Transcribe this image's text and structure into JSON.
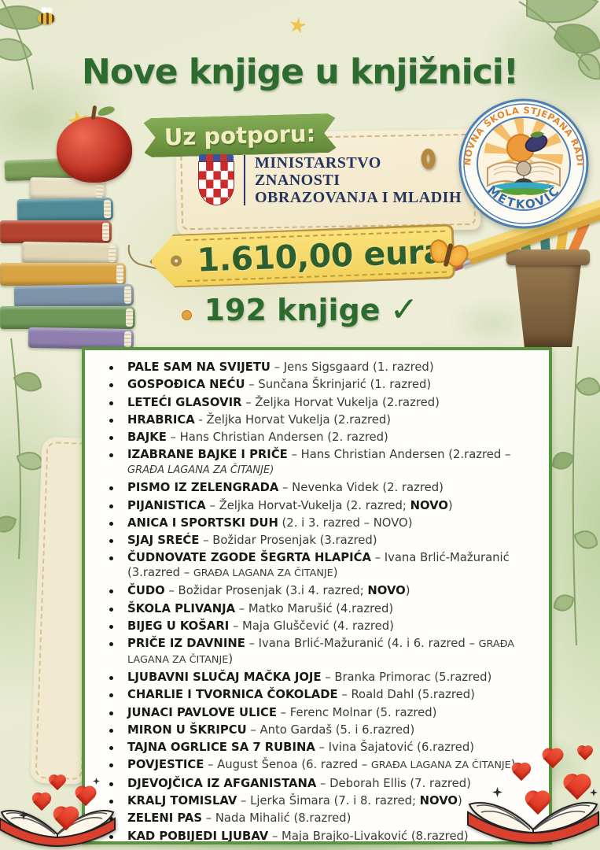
{
  "poster": {
    "title": "Nove knjige u knjižnici!"
  },
  "support": {
    "label": "Uz potporu:"
  },
  "ministry": {
    "line1": "MINISTARSTVO",
    "line2": "ZNANOSTI",
    "line3": "OBRAZOVANJA I MLADIH"
  },
  "funding": {
    "amount": "1.610,00 eura",
    "book_count": "192 knjige",
    "checkmark": "✓"
  },
  "school": {
    "arc_text": "OSNOVNA ŠKOLA STJEPANA RADIĆA",
    "city": "METKOVIĆ"
  },
  "colors": {
    "title_green": "#2d6b31",
    "ribbon_green": "#6c9440",
    "tag_yellow": "#f2d25c",
    "list_border_green": "#57953f",
    "ministry_navy": "#26355f",
    "heart_red": "#d92d1a",
    "logo_orange": "#e0862f",
    "logo_blue": "#2f6bad"
  },
  "books": [
    {
      "segments": [
        {
          "t": "PALE SAM NA SVIJETU",
          "s": "b"
        },
        {
          "t": " – Jens Sigsgaard (1. razred)",
          "s": "n"
        }
      ]
    },
    {
      "segments": [
        {
          "t": "GOSPOĐICA NEĆU",
          "s": "b"
        },
        {
          "t": " – Sunčana Škrinjarić (1. razred)",
          "s": "n"
        }
      ]
    },
    {
      "segments": [
        {
          "t": "LETEĆI GLASOVIR",
          "s": "b"
        },
        {
          "t": " – Željka Horvat Vukelja (2.razred)",
          "s": "n"
        }
      ]
    },
    {
      "segments": [
        {
          "t": "HRABRICA",
          "s": "b"
        },
        {
          "t": " - Željka Horvat Vukelja (2.razred)",
          "s": "n"
        }
      ]
    },
    {
      "segments": [
        {
          "t": "BAJKE",
          "s": "b"
        },
        {
          "t": " – Hans Christian Andersen (2. razred)",
          "s": "n"
        }
      ]
    },
    {
      "segments": [
        {
          "t": "IZABRANE BAJKE I PRIČE",
          "s": "b"
        },
        {
          "t": " – Hans Christian Andersen (2.razred – ",
          "s": "n"
        },
        {
          "t": "GRAĐA LAGANA ZA ČITANJE)",
          "s": "i"
        }
      ]
    },
    {
      "segments": [
        {
          "t": "PISMO IZ ZELENGRADA",
          "s": "b"
        },
        {
          "t": " – Nevenka Videk (2. razred)",
          "s": "n"
        }
      ]
    },
    {
      "segments": [
        {
          "t": "PIJANISTICA",
          "s": "b"
        },
        {
          "t": " – Željka Horvat-Vukelja (2. razred; ",
          "s": "n"
        },
        {
          "t": "NOVO",
          "s": "b"
        },
        {
          "t": ")",
          "s": "n"
        }
      ]
    },
    {
      "segments": [
        {
          "t": "ANICA I SPORTSKI DUH",
          "s": "b"
        },
        {
          "t": " (2. i 3. razred – NOVO)",
          "s": "n"
        }
      ]
    },
    {
      "segments": [
        {
          "t": "SJAJ SREĆE",
          "s": "b"
        },
        {
          "t": " – Božidar Prosenjak (3.razred)",
          "s": "n"
        }
      ]
    },
    {
      "segments": [
        {
          "t": "ČUDNOVATE ZGODE ŠEGRTA HLAPIĆA",
          "s": "b"
        },
        {
          "t": " – Ivana Brlić-Mažuranić (3.razred – ",
          "s": "n"
        },
        {
          "t": "GRAĐA LAGANA ZA ČITANJE",
          "s": "c"
        },
        {
          "t": ")",
          "s": "n"
        }
      ]
    },
    {
      "segments": [
        {
          "t": "ČUDO",
          "s": "b"
        },
        {
          "t": " – Božidar Prosenjak (3.i 4. razred; ",
          "s": "n"
        },
        {
          "t": "NOVO",
          "s": "b"
        },
        {
          "t": ")",
          "s": "n"
        }
      ]
    },
    {
      "segments": [
        {
          "t": "ŠKOLA PLIVANJA",
          "s": "b"
        },
        {
          "t": " – Matko Marušić (4.razred)",
          "s": "n"
        }
      ]
    },
    {
      "segments": [
        {
          "t": "BIJEG U KOŠARI",
          "s": "b"
        },
        {
          "t": " – Maja Gluščević (4. razred)",
          "s": "n"
        }
      ]
    },
    {
      "segments": [
        {
          "t": "PRIČE IZ DAVNINE",
          "s": "b"
        },
        {
          "t": " – Ivana Brlić-Mažuranić (4. i 6. razred – ",
          "s": "n"
        },
        {
          "t": "GRAĐA LAGANA ZA ČITANJE",
          "s": "c"
        },
        {
          "t": ")",
          "s": "n"
        }
      ]
    },
    {
      "segments": [
        {
          "t": "LJUBAVNI SLUČAJ MAČKA JOJE",
          "s": "b"
        },
        {
          "t": " – Branka Primorac (5.razred)",
          "s": "n"
        }
      ]
    },
    {
      "segments": [
        {
          "t": "CHARLIE I TVORNICA ČOKOLADE",
          "s": "b"
        },
        {
          "t": " – Roald Dahl (5.razred)",
          "s": "n"
        }
      ]
    },
    {
      "segments": [
        {
          "t": "JUNACI PAVLOVE ULICE",
          "s": "b"
        },
        {
          "t": " – Ferenc Molnar (5. razred)",
          "s": "n"
        }
      ]
    },
    {
      "segments": [
        {
          "t": "MIRON U ŠKRIPCU",
          "s": "b"
        },
        {
          "t": " – Anto Gardaš (5. i 6.razred)",
          "s": "n"
        }
      ]
    },
    {
      "segments": [
        {
          "t": "TAJNA OGRLICE SA 7 RUBINA",
          "s": "b"
        },
        {
          "t": " – Ivina Šajatović (6.razred)",
          "s": "n"
        }
      ]
    },
    {
      "segments": [
        {
          "t": "POVJESTICE",
          "s": "b"
        },
        {
          "t": " – August Šenoa (6. razred – ",
          "s": "n"
        },
        {
          "t": "GRAĐA LAGANA ZA ČITANJE",
          "s": "c"
        },
        {
          "t": ")",
          "s": "n"
        }
      ]
    },
    {
      "segments": [
        {
          "t": "DJEVOJČICA IZ AFGANISTANA",
          "s": "b"
        },
        {
          "t": " – Deborah Ellis (7. razred)",
          "s": "n"
        }
      ]
    },
    {
      "segments": [
        {
          "t": "KRALJ TOMISLAV",
          "s": "b"
        },
        {
          "t": " – Ljerka Šimara (7. i 8. razred; ",
          "s": "n"
        },
        {
          "t": "NOVO",
          "s": "b"
        },
        {
          "t": ")",
          "s": "n"
        }
      ]
    },
    {
      "segments": [
        {
          "t": "ZELENI PAS",
          "s": "b"
        },
        {
          "t": " – Nada Mihalić (8.razred)",
          "s": "n"
        }
      ]
    },
    {
      "segments": [
        {
          "t": "KAD POBIJEDI LJUBAV",
          "s": "b"
        },
        {
          "t": " – Maja Brajko-Livaković (8.razred)",
          "s": "n"
        }
      ]
    }
  ]
}
